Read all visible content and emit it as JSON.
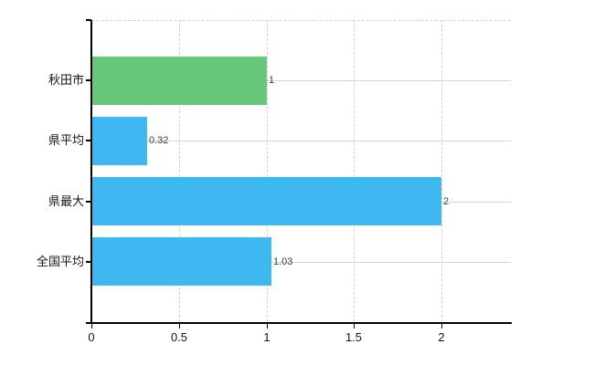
{
  "chart_data": {
    "type": "bar",
    "orientation": "horizontal",
    "title": "",
    "xlabel": "",
    "ylabel": "",
    "categories": [
      "秋田市",
      "県平均",
      "県最大",
      "全国平均"
    ],
    "values": [
      1,
      0.32,
      2,
      1.03
    ],
    "value_labels": [
      "1",
      "0.32",
      "2",
      "1.03"
    ],
    "bar_colors": [
      "#66c878",
      "#3db8f0",
      "#3db8f0",
      "#3db8f0"
    ],
    "xlim": [
      0,
      2.4
    ],
    "x_ticks": [
      0,
      0.5,
      1,
      1.5,
      2
    ],
    "x_tick_labels": [
      "0",
      "0.5",
      "1",
      "1.5",
      "2"
    ],
    "grid": true,
    "legend": false,
    "colors": {
      "grid_horizontal": "#d4d6d1",
      "grid_vertical": "#d0d2cd",
      "axis": "#000000",
      "category_text": "#141414",
      "value_text": "#3a4045",
      "tick_text": "#141414",
      "background": "#ffffff"
    }
  }
}
